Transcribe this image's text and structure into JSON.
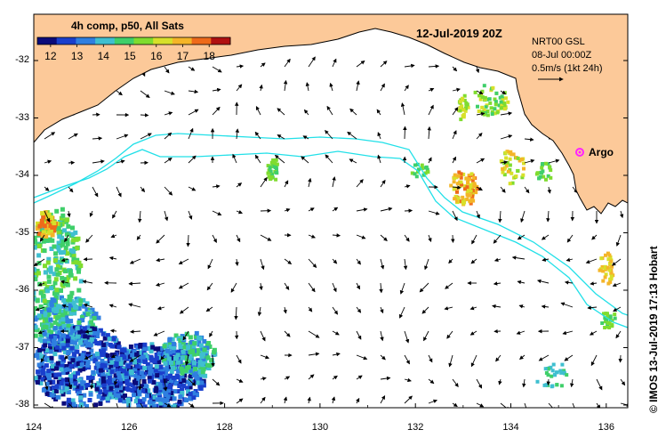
{
  "map": {
    "date_title": "12-Jul-2019 20Z",
    "colorbar": {
      "title": "4h comp, p50, All Sats",
      "ticks": [
        "12",
        "13",
        "14",
        "15",
        "16",
        "17",
        "18"
      ],
      "vmin": 11.5,
      "vmax": 18.8,
      "colors": [
        "#0b0b7a",
        "#1a3fcc",
        "#2f7fe0",
        "#3fbfd0",
        "#3fcf6a",
        "#7fdc2f",
        "#d7e02a",
        "#f4b528",
        "#ee6a1a",
        "#b01010"
      ]
    },
    "info": {
      "line1": "NRT00 GSL",
      "line2": "08-Jul 00:00Z",
      "line3": "0.5m/s (1kt 24h)"
    },
    "argo_label": "Argo",
    "credit": "© IMOS 13-Jul-2019 17:13 Hobart",
    "y_axis_labels": [
      "-32",
      "-33",
      "-34",
      "-35",
      "-36",
      "-37",
      "-38"
    ],
    "x_axis_labels": [
      "124",
      "126",
      "128",
      "130",
      "132",
      "134",
      "136"
    ],
    "colors": {
      "land": "#fcc999",
      "coast": "#000000",
      "contour": "#22e0e8",
      "argo": "#ff22ff",
      "sea": "#ffffff"
    }
  }
}
